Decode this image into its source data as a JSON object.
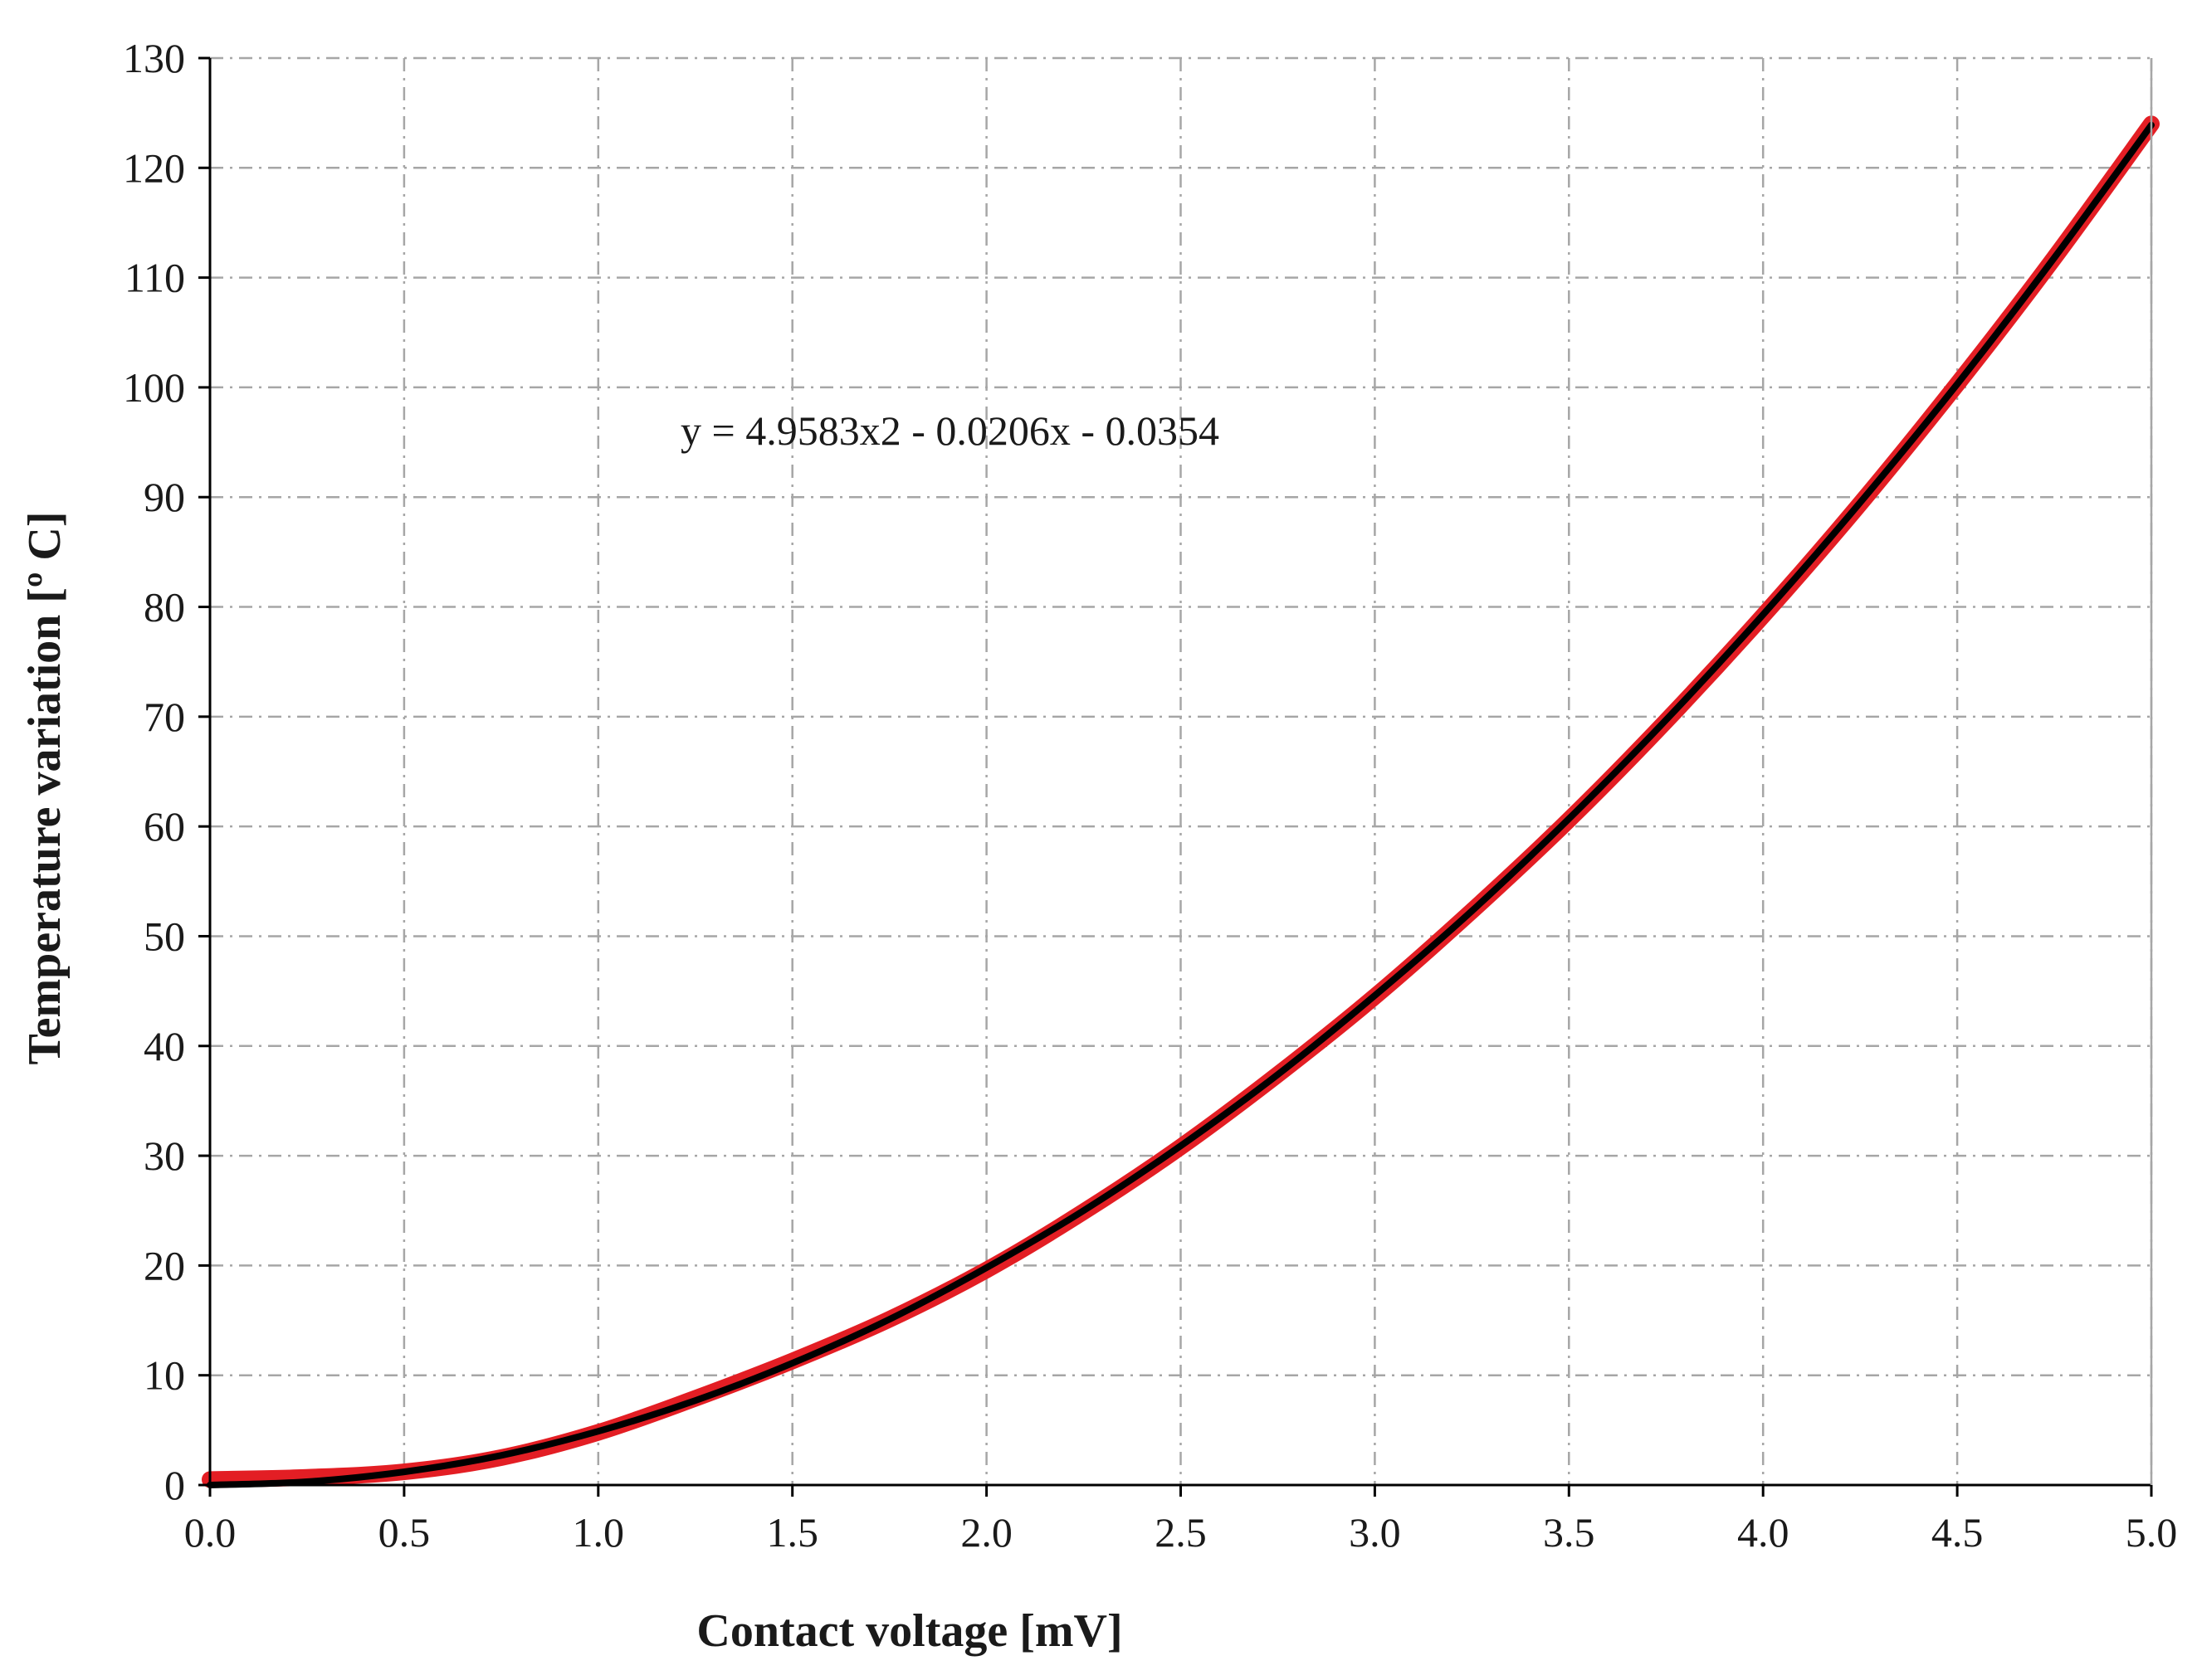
{
  "chart_data": {
    "type": "line",
    "xlabel": "Contact voltage [mV]",
    "ylabel": "Temperature variation [º C]",
    "xlim": [
      0,
      5
    ],
    "ylim": [
      0,
      130
    ],
    "x_ticks": [
      "0.0",
      "0.5",
      "1.0",
      "1.5",
      "2.0",
      "2.5",
      "3.0",
      "3.5",
      "4.0",
      "4.5",
      "5.0"
    ],
    "y_ticks": [
      "0",
      "10",
      "20",
      "30",
      "40",
      "50",
      "60",
      "70",
      "80",
      "90",
      "100",
      "110",
      "120",
      "130"
    ],
    "grid": true,
    "annotation": "y = 4.9583x2 - 0.0206x - 0.0354",
    "series": [
      {
        "color": "#e31e24",
        "style": "thick",
        "x": [
          0,
          0.25,
          0.5,
          0.75,
          1.0,
          1.25,
          1.5,
          1.75,
          2.0,
          2.25,
          2.5,
          2.75,
          3.0,
          3.25,
          3.5,
          3.75,
          4.0,
          4.25,
          4.5,
          4.75,
          5.0
        ],
        "y": [
          0.5,
          0.7,
          1.2,
          2.5,
          4.8,
          7.9,
          11.3,
          15.1,
          19.6,
          24.9,
          30.8,
          37.4,
          44.5,
          52.3,
          60.6,
          69.6,
          79.2,
          89.4,
          100.3,
          111.8,
          124.0
        ]
      },
      {
        "color": "#000000",
        "style": "thin",
        "x": [
          0,
          0.25,
          0.5,
          0.75,
          1.0,
          1.25,
          1.5,
          1.75,
          2.0,
          2.25,
          2.5,
          2.75,
          3.0,
          3.25,
          3.5,
          3.75,
          4.0,
          4.25,
          4.5,
          4.75,
          5.0
        ],
        "y": [
          0.0,
          0.3,
          1.2,
          2.7,
          4.9,
          7.7,
          11.1,
          15.1,
          19.8,
          25.0,
          30.9,
          37.4,
          44.6,
          52.3,
          60.7,
          69.7,
          79.3,
          89.5,
          100.3,
          111.8,
          123.9
        ]
      }
    ]
  }
}
